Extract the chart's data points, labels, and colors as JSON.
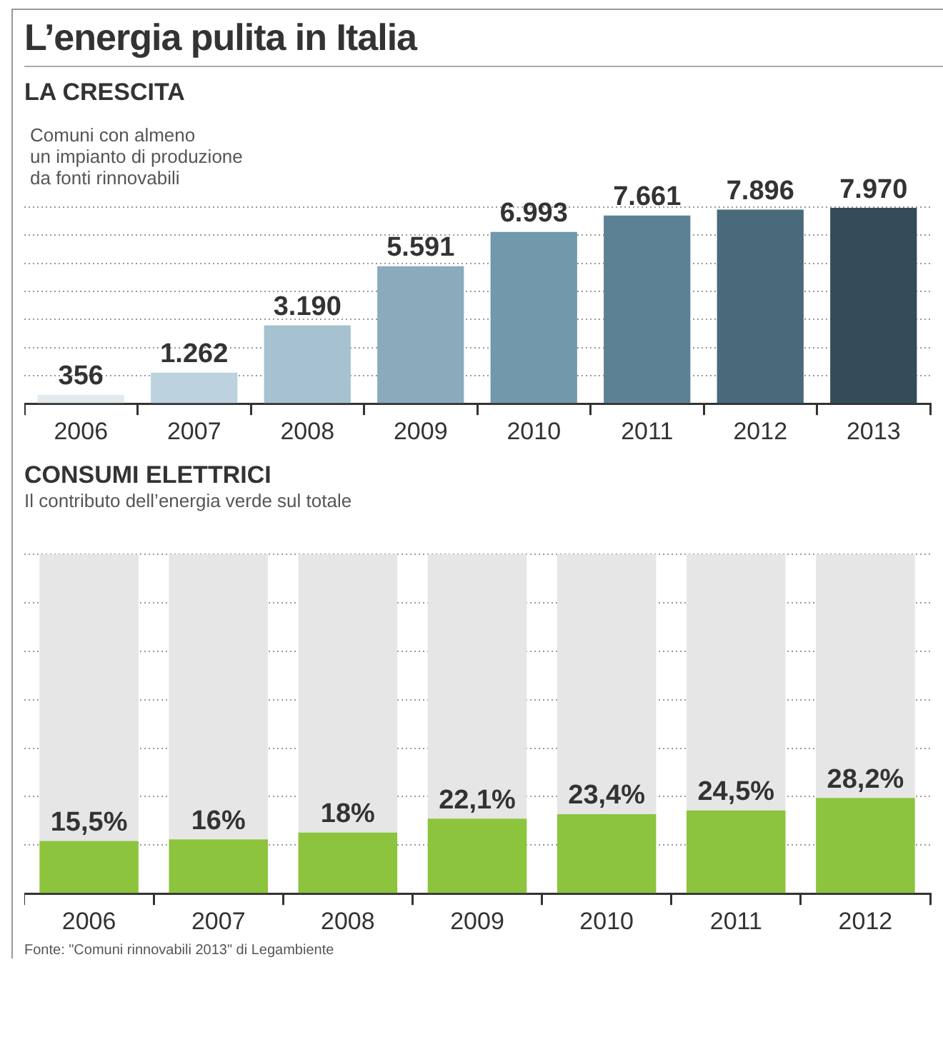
{
  "chart_data": [
    {
      "type": "bar",
      "title": "L’energia pulita in Italia",
      "subtitle": "LA CRESCITA",
      "annotations": [
        "Comuni con almeno\nun impianto di produzione\nda fonti rinnovabili"
      ],
      "categories": [
        "2006",
        "2007",
        "2008",
        "2009",
        "2010",
        "2011",
        "2012",
        "2013"
      ],
      "values": [
        356,
        1262,
        3190,
        5591,
        6993,
        7661,
        7896,
        7970
      ],
      "value_labels": [
        "356",
        "1.262",
        "3.190",
        "5.591",
        "6.993",
        "7.661",
        "7.896",
        "7.970"
      ],
      "colors": [
        "#e3e9ec",
        "#bcd2de",
        "#a6c2d0",
        "#8aabbc",
        "#7198ab",
        "#5c8194",
        "#486a7a",
        "#344c59"
      ],
      "grid": "y",
      "tick_labels": "x"
    },
    {
      "type": "bar",
      "title": "CONSUMI ELETTRICI",
      "subtitle": "Il contributo dell’energia verde sul totale",
      "annotations": [
        "Fonte: \"Comuni rinnovabili 2013\" di Legambiente"
      ],
      "categories": [
        "2006",
        "2007",
        "2008",
        "2009",
        "2010",
        "2011",
        "2012"
      ],
      "series": [
        {
          "color": "#8cc43e",
          "values": [
            15.5,
            16,
            18,
            22.1,
            23.4,
            24.5,
            28.2
          ],
          "value_labels": [
            "15,5%",
            "16%",
            "18%",
            "22,1%",
            "23,4%",
            "24,5%",
            "28,2%"
          ]
        },
        {
          "color": "#e6e6e6",
          "values": [
            84.5,
            84,
            82,
            77.9,
            76.6,
            75.5,
            71.8
          ]
        }
      ],
      "stacked": true,
      "grid": "y",
      "tick_labels": "x"
    }
  ]
}
